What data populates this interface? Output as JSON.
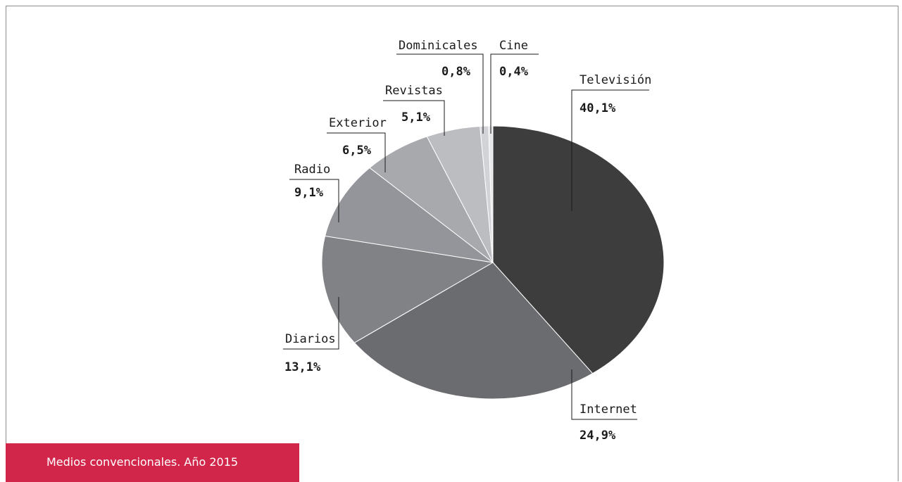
{
  "caption": "Medios convencionales. Año 2015",
  "chart_data": {
    "type": "pie",
    "title": "Medios convencionales. Año 2015",
    "slices": [
      {
        "label": "Televisión",
        "value": 40.1,
        "display": "40,1%",
        "color": "#3d3d3d"
      },
      {
        "label": "Internet",
        "value": 24.9,
        "display": "24,9%",
        "color": "#6b6c70"
      },
      {
        "label": "Diarios",
        "value": 13.1,
        "display": "13,1%",
        "color": "#818286"
      },
      {
        "label": "Radio",
        "value": 9.1,
        "display": "9,1%",
        "color": "#94959a"
      },
      {
        "label": "Exterior",
        "value": 6.5,
        "display": "6,5%",
        "color": "#a8a9ad"
      },
      {
        "label": "Revistas",
        "value": 5.1,
        "display": "5,1%",
        "color": "#bcbdc1"
      },
      {
        "label": "Dominicales",
        "value": 0.8,
        "display": "0,8%",
        "color": "#d2d3d6"
      },
      {
        "label": "Cine",
        "value": 0.4,
        "display": "0,4%",
        "color": "#e6e7e9"
      }
    ],
    "legend": "none"
  }
}
